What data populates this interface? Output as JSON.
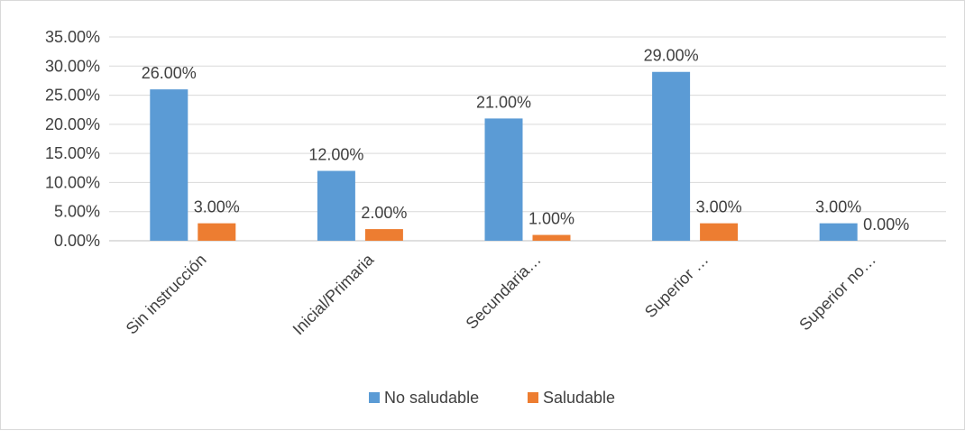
{
  "chart_data": {
    "type": "bar",
    "categories": [
      "Sin instrucción",
      "Inicial/Primaria",
      "Secundaria…",
      "Superior …",
      "Superior no…"
    ],
    "series": [
      {
        "name": "No saludable",
        "values": [
          26.0,
          12.0,
          21.0,
          29.0,
          3.0
        ],
        "labels": [
          "26.00%",
          "12.00%",
          "21.00%",
          "29.00%",
          "3.00%"
        ],
        "color": "#5b9bd5"
      },
      {
        "name": "Saludable",
        "values": [
          3.0,
          2.0,
          1.0,
          3.0,
          0.0
        ],
        "labels": [
          "3.00%",
          "2.00%",
          "1.00%",
          "3.00%",
          "0.00%"
        ],
        "color": "#ed7d31"
      }
    ],
    "y_ticks": [
      "0.00%",
      "5.00%",
      "10.00%",
      "15.00%",
      "20.00%",
      "25.00%",
      "30.00%",
      "35.00%"
    ],
    "ylim": [
      0,
      35
    ],
    "grid": true,
    "legend_position": "bottom",
    "gridline_color": "#d9d9d9",
    "axis_color": "#bfbfbf"
  }
}
